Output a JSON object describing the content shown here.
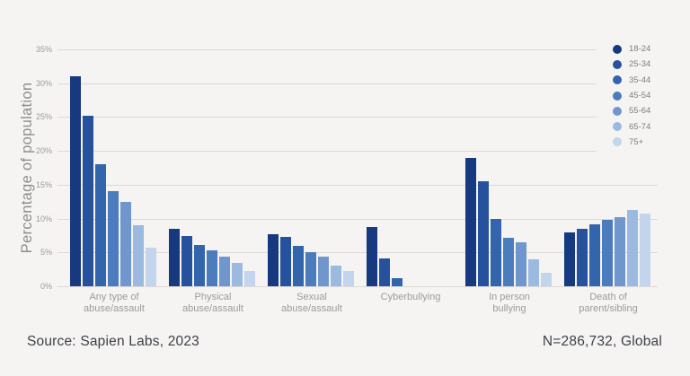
{
  "chart_data": {
    "type": "bar",
    "title": "",
    "ylabel": "Percentage of population",
    "xlabel": "",
    "y_axis": {
      "min": 0,
      "max": 35,
      "step": 5,
      "tick_labels": [
        "0%",
        "5%",
        "10%",
        "15%",
        "20%",
        "25%",
        "30%",
        "35%"
      ]
    },
    "grid": true,
    "legend_position": "top-right",
    "categories": [
      {
        "lines": [
          "Any type of",
          "abuse/assault"
        ]
      },
      {
        "lines": [
          "Physical",
          "abuse/assault"
        ]
      },
      {
        "lines": [
          "Sexual",
          "abuse/assault"
        ]
      },
      {
        "lines": [
          "Cyberbullying"
        ]
      },
      {
        "lines": [
          "In person",
          "bullying"
        ]
      },
      {
        "lines": [
          "Death of",
          "parent/sibling"
        ]
      }
    ],
    "series": [
      {
        "name": "18-24",
        "color": "#16397f",
        "values": [
          31,
          8.5,
          7.7,
          8.8,
          19,
          7.9
        ]
      },
      {
        "name": "25-34",
        "color": "#26529d",
        "values": [
          25.2,
          7.4,
          7.3,
          4.1,
          15.5,
          8.5
        ]
      },
      {
        "name": "35-44",
        "color": "#3365ad",
        "values": [
          18,
          6.1,
          6,
          1.2,
          10,
          9.2
        ]
      },
      {
        "name": "45-54",
        "color": "#4b7cbe",
        "values": [
          14,
          5.3,
          5,
          0,
          7.2,
          9.8
        ]
      },
      {
        "name": "55-64",
        "color": "#6f97cd",
        "values": [
          12.4,
          4.4,
          4.4,
          0,
          6.5,
          10.2
        ]
      },
      {
        "name": "65-74",
        "color": "#9cb9df",
        "values": [
          9,
          3.5,
          3,
          0,
          4,
          11.2
        ]
      },
      {
        "name": "75+",
        "color": "#c3d5ed",
        "values": [
          5.7,
          2.3,
          2.2,
          0,
          2,
          10.7
        ]
      }
    ]
  },
  "footer": {
    "source": "Source: Sapien Labs, 2023",
    "sample": "N=286,732, Global"
  }
}
